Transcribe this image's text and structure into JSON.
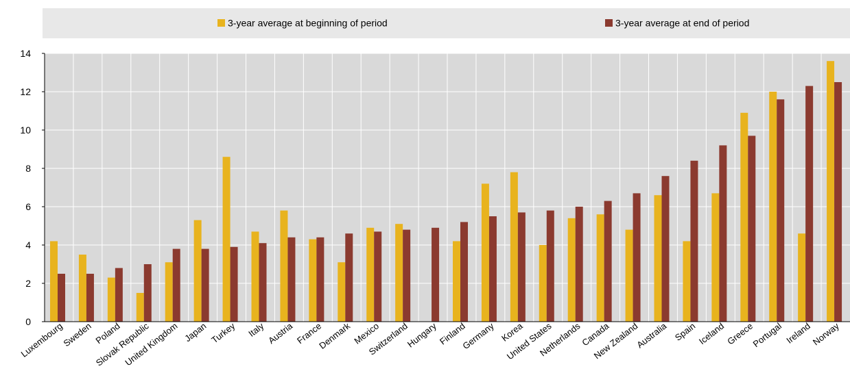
{
  "chart_data": {
    "type": "bar",
    "title": "",
    "xlabel": "",
    "ylabel": "",
    "ylim": [
      0,
      14
    ],
    "yticks": [
      0,
      2,
      4,
      6,
      8,
      10,
      12,
      14
    ],
    "grid": true,
    "legend_position": "top",
    "colors": {
      "series1": "#E8B31E",
      "series2": "#8B3A2F",
      "plot_background": "#D9D9D9",
      "legend_background": "#E8E8E8",
      "gridline": "#FFFFFF"
    },
    "categories": [
      "Luxembourg",
      "Sweden",
      "Poland",
      "Slovak Republic",
      "United Kingdom",
      "Japan",
      "Turkey",
      "Italy",
      "Austria",
      "France",
      "Denmark",
      "Mexico",
      "Switzerland",
      "Hungary",
      "Finland",
      "Germany",
      "Korea",
      "United States",
      "Netherlands",
      "Canada",
      "New Zealand",
      "Australia",
      "Spain",
      "Iceland",
      "Greece",
      "Portugal",
      "Ireland",
      "Norway"
    ],
    "series": [
      {
        "name": "3-year average at beginning of period",
        "values": [
          4.2,
          3.5,
          2.3,
          1.5,
          3.1,
          5.3,
          8.6,
          4.7,
          5.8,
          4.3,
          3.1,
          4.9,
          5.1,
          null,
          4.2,
          7.2,
          7.8,
          4.0,
          5.4,
          5.6,
          4.8,
          6.6,
          4.2,
          6.7,
          10.9,
          12.0,
          4.6,
          13.6
        ]
      },
      {
        "name": "3-year average at end of period",
        "values": [
          2.5,
          2.5,
          2.8,
          3.0,
          3.8,
          3.8,
          3.9,
          4.1,
          4.4,
          4.4,
          4.6,
          4.7,
          4.8,
          4.9,
          5.2,
          5.5,
          5.7,
          5.8,
          6.0,
          6.3,
          6.7,
          7.6,
          8.4,
          9.2,
          9.7,
          11.6,
          12.3,
          12.5
        ]
      }
    ]
  }
}
